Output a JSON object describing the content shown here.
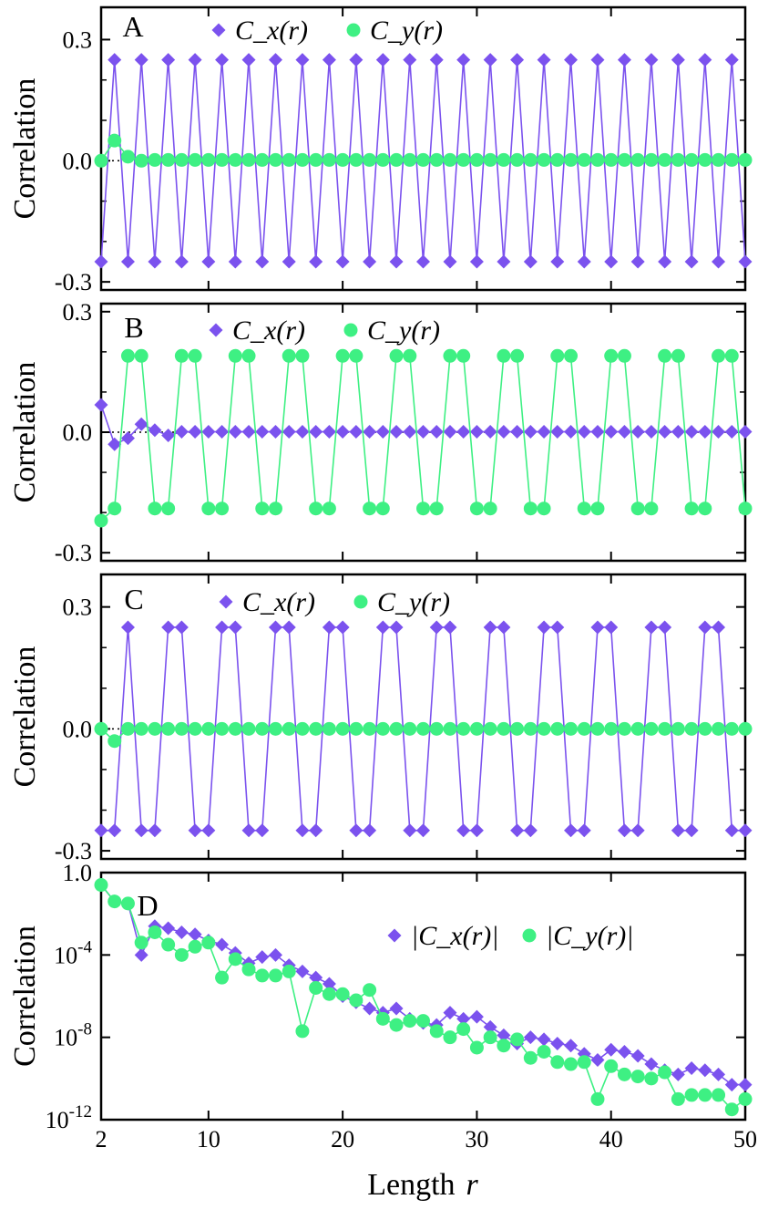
{
  "colors": {
    "cx": "#7B52EE",
    "cy": "#3EF083",
    "frame": "#000000",
    "zero_line": "#000000"
  },
  "figure": {
    "xlabel": "Length",
    "xlabel_var": "r",
    "x_tick_labels": [
      "2",
      "10",
      "20",
      "30",
      "40",
      "50"
    ]
  },
  "chart_data": [
    {
      "type": "line",
      "panel": "A",
      "ylabel": "Correlation",
      "yscale": "linear",
      "ylim": [
        -0.32,
        0.38
      ],
      "xlim": [
        2,
        50
      ],
      "y_ticks": [
        {
          "value": 0.3,
          "label": "0.3"
        },
        {
          "value": 0.0,
          "label": "0.0"
        },
        {
          "value": -0.3,
          "label": "-0.3"
        }
      ],
      "legend": [
        "C_x(r)",
        "C_y(r)"
      ],
      "zero_dotted": true,
      "series": [
        {
          "name": "C_x(r)",
          "marker": "diamond",
          "color": "cx",
          "pattern": "alt1",
          "amplitude": 0.25,
          "phase": 1,
          "head": []
        },
        {
          "name": "C_y(r)",
          "marker": "circle",
          "color": "cy",
          "pattern": "const",
          "value": 0.002,
          "head": [
            0.0,
            0.05,
            0.01,
            0.0
          ]
        }
      ]
    },
    {
      "type": "line",
      "panel": "B",
      "ylabel": "Correlation",
      "yscale": "linear",
      "ylim": [
        -0.32,
        0.32
      ],
      "xlim": [
        2,
        50
      ],
      "y_ticks": [
        {
          "value": 0.3,
          "label": "0.3"
        },
        {
          "value": 0.0,
          "label": "0.0"
        },
        {
          "value": -0.3,
          "label": "-0.3"
        }
      ],
      "legend": [
        "C_x(r)",
        "C_y(r)"
      ],
      "zero_dotted": true,
      "series": [
        {
          "name": "C_x(r)",
          "marker": "diamond",
          "color": "cx",
          "pattern": "const",
          "value": 0.001,
          "head": [
            0.068,
            -0.03,
            -0.015,
            0.02,
            0.005,
            -0.008
          ]
        },
        {
          "name": "C_y(r)",
          "marker": "circle",
          "color": "cy",
          "pattern": "alt2",
          "amplitude": 0.19,
          "offset": 0,
          "head": [
            -0.22,
            -0.19
          ]
        }
      ]
    },
    {
      "type": "line",
      "panel": "C",
      "ylabel": "Correlation",
      "yscale": "linear",
      "ylim": [
        -0.32,
        0.38
      ],
      "xlim": [
        2,
        50
      ],
      "y_ticks": [
        {
          "value": 0.3,
          "label": "0.3"
        },
        {
          "value": 0.0,
          "label": "0.0"
        },
        {
          "value": -0.3,
          "label": "-0.3"
        }
      ],
      "legend": [
        "C_x(r)",
        "C_y(r)"
      ],
      "zero_dotted": true,
      "series": [
        {
          "name": "C_x(r)",
          "marker": "diamond",
          "color": "cx",
          "pattern": "alt2",
          "amplitude": 0.25,
          "offset": 1,
          "head": [
            -0.25,
            -0.25
          ]
        },
        {
          "name": "C_y(r)",
          "marker": "circle",
          "color": "cy",
          "pattern": "const",
          "value": 0.0,
          "head": [
            0.0,
            -0.03
          ]
        }
      ]
    },
    {
      "type": "line",
      "panel": "D",
      "ylabel": "Correlation",
      "yscale": "log",
      "ylim": [
        1e-12,
        1.0
      ],
      "xlim": [
        2,
        50
      ],
      "y_ticks": [
        {
          "value": 1.0,
          "label": "1.0"
        },
        {
          "value": 0.0001,
          "label": "10",
          "sup": "-4"
        },
        {
          "value": 1e-08,
          "label": "10",
          "sup": "-8"
        },
        {
          "value": 1e-12,
          "label": "10",
          "sup": "-12"
        }
      ],
      "legend": [
        "|C_x(r)|",
        "|C_y(r)|"
      ],
      "zero_dotted": false,
      "series": [
        {
          "name": "|C_x(r)|",
          "marker": "diamond",
          "color": "cx",
          "x_start": 2,
          "log10_values": [
            -0.6,
            -1.4,
            -1.5,
            -4.0,
            -2.6,
            -2.7,
            -2.9,
            -3.0,
            -3.3,
            -3.5,
            -3.9,
            -4.4,
            -4.1,
            -4.0,
            -4.5,
            -4.8,
            -5.1,
            -5.4,
            -6.0,
            -6.3,
            -6.6,
            -6.8,
            -6.6,
            -7.1,
            -7.3,
            -7.4,
            -6.8,
            -7.1,
            -7.0,
            -7.5,
            -7.9,
            -8.3,
            -8.0,
            -8.1,
            -8.3,
            -8.4,
            -8.8,
            -9.1,
            -8.6,
            -8.7,
            -8.9,
            -9.3,
            -9.6,
            -9.8,
            -9.5,
            -9.6,
            -9.8,
            -10.3,
            -10.3
          ]
        },
        {
          "name": "|C_y(r)|",
          "marker": "circle",
          "color": "cy",
          "x_start": 2,
          "log10_values": [
            -0.6,
            -1.4,
            -1.5,
            -3.4,
            -2.9,
            -3.5,
            -4.0,
            -3.6,
            -3.4,
            -5.1,
            -4.2,
            -4.7,
            -5.0,
            -5.0,
            -4.8,
            -7.7,
            -5.6,
            -5.9,
            -5.9,
            -6.2,
            -5.7,
            -7.1,
            -7.4,
            -7.2,
            -7.2,
            -7.7,
            -8.0,
            -7.6,
            -8.5,
            -8.0,
            -8.4,
            -8.1,
            -9.0,
            -8.7,
            -9.2,
            -9.3,
            -9.2,
            -11.0,
            -9.4,
            -9.8,
            -9.9,
            -10.0,
            -9.7,
            -11.0,
            -10.8,
            -10.8,
            -10.8,
            -11.5,
            -11.0
          ]
        }
      ]
    }
  ]
}
